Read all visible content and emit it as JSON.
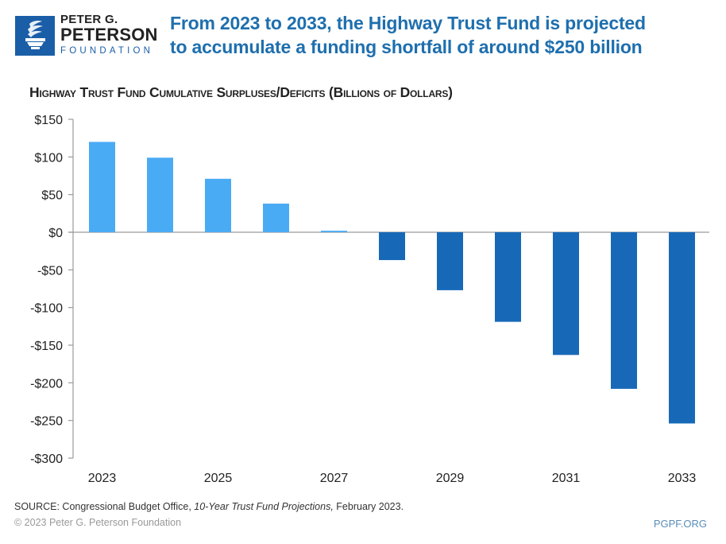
{
  "brand": {
    "line1": "PETER G.",
    "line2": "PETERSON",
    "line3": "FOUNDATION",
    "logo_icon": "torch-icon",
    "brand_color": "#1a5ea8"
  },
  "headline": {
    "line1": "From 2023 to 2033, the Highway Trust Fund is projected",
    "line2": "to accumulate a funding shortfall of around $250 billion"
  },
  "footer": {
    "source_prefix": "SOURCE: Congressional Budget Office, ",
    "source_title": "10-Year Trust Fund Projections,",
    "source_suffix": "  February 2023.",
    "copyright": "© 2023 Peter G. Peterson Foundation",
    "site": "PGPF.ORG"
  },
  "chart_data": {
    "type": "bar",
    "title": "Highway Trust Fund Cumulative Surpluses/Deficits (Billions of Dollars)",
    "xlabel": "",
    "ylabel": "",
    "categories": [
      "2023",
      "2024",
      "2025",
      "2026",
      "2027",
      "2028",
      "2029",
      "2030",
      "2031",
      "2032",
      "2033"
    ],
    "values": [
      120,
      99,
      71,
      38,
      2,
      -37,
      -77,
      -119,
      -163,
      -208,
      -254
    ],
    "x_tick_labels": [
      "2023",
      "2025",
      "2027",
      "2029",
      "2031",
      "2033"
    ],
    "ylim": [
      -300,
      150
    ],
    "y_ticks": [
      150,
      100,
      50,
      0,
      -50,
      -100,
      -150,
      -200,
      -250,
      -300
    ],
    "y_tick_labels": [
      "$150",
      "$100",
      "$50",
      "$0",
      "-$50",
      "-$100",
      "-$150",
      "-$200",
      "-$250",
      "-$300"
    ],
    "grid": false,
    "legend": "none",
    "colors": {
      "positive": "#4aabf5",
      "negative": "#1769b8",
      "axis": "#9a9a9a",
      "text": "#222222"
    }
  }
}
